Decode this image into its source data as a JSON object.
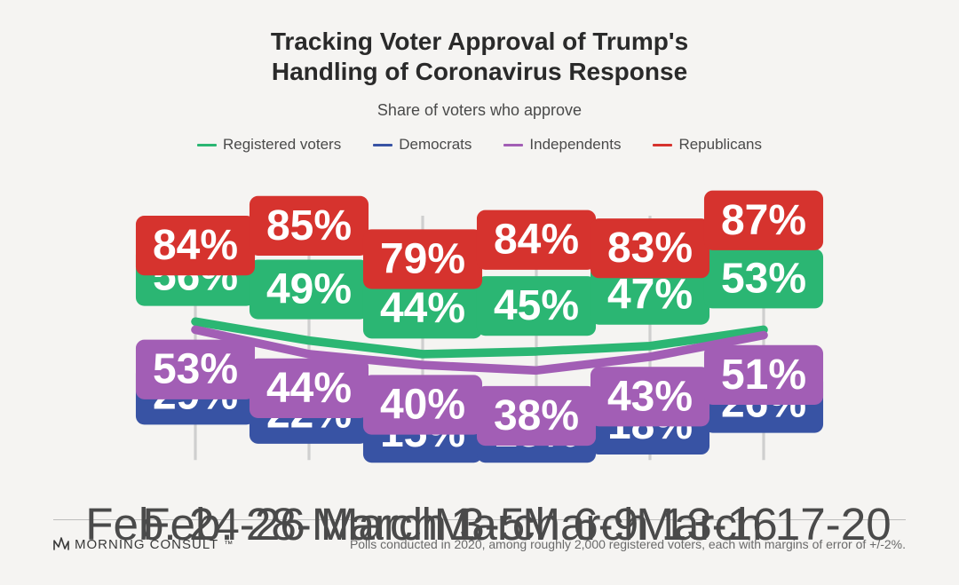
{
  "title_line1": "Tracking Voter Approval of Trump's",
  "title_line2": "Handling of Coronavirus Response",
  "title_fontsize": 28,
  "subtitle": "Share of voters who approve",
  "subtitle_fontsize": 18,
  "legend_fontsize": 17,
  "background_color": "#f5f4f2",
  "chart": {
    "type": "line",
    "categories": [
      "Feb. 24-26",
      "Feb. 28-March 1",
      "March 3-5",
      "March 6-9",
      "March 13-16",
      "March 17-20"
    ],
    "y_range": [
      5,
      95
    ],
    "gridline_color": "#cfcfcf",
    "gridline_width": 1,
    "axis_label_color": "#4a4a4a",
    "axis_label_fontsize": 16,
    "line_width": 3,
    "value_label": {
      "fontsize": 15,
      "font_weight": 600,
      "text_color": "#ffffff",
      "box_radius": 3,
      "box_padx": 7,
      "box_pady": 3,
      "suffix": "%"
    },
    "series": [
      {
        "name": "Registered voters",
        "color": "#2bb673",
        "values": [
          56,
          49,
          44,
          45,
          47,
          53
        ]
      },
      {
        "name": "Democrats",
        "color": "#3853a4",
        "values": [
          29,
          22,
          15,
          15,
          18,
          26
        ]
      },
      {
        "name": "Independents",
        "color": "#a25eb5",
        "values": [
          53,
          44,
          40,
          38,
          43,
          51
        ]
      },
      {
        "name": "Republicans",
        "color": "#d6332e",
        "values": [
          84,
          85,
          79,
          84,
          83,
          87
        ]
      }
    ],
    "label_offsets": {
      "0": [
        [
          0,
          -16
        ],
        [
          0,
          -18
        ],
        [
          0,
          -16
        ],
        [
          0,
          -16
        ],
        [
          0,
          -18
        ],
        [
          0,
          -18
        ]
      ],
      "1": [
        [
          0,
          0
        ],
        [
          0,
          0
        ],
        [
          0,
          0
        ],
        [
          0,
          0
        ],
        [
          0,
          0
        ],
        [
          0,
          0
        ]
      ],
      "2": [
        [
          0,
          14
        ],
        [
          0,
          12
        ],
        [
          0,
          14
        ],
        [
          0,
          16
        ],
        [
          0,
          14
        ],
        [
          0,
          14
        ]
      ],
      "3": [
        [
          0,
          0
        ],
        [
          0,
          -6
        ],
        [
          0,
          0
        ],
        [
          0,
          -2
        ],
        [
          0,
          0
        ],
        [
          0,
          -6
        ]
      ]
    }
  },
  "footer": {
    "brand_name": "MORNING CONSULT",
    "note": "Polls conducted in 2020, among roughly 2,000 registered voters, each with margins of error of +/-2%.",
    "brand_fontsize": 15,
    "note_fontsize": 14
  }
}
